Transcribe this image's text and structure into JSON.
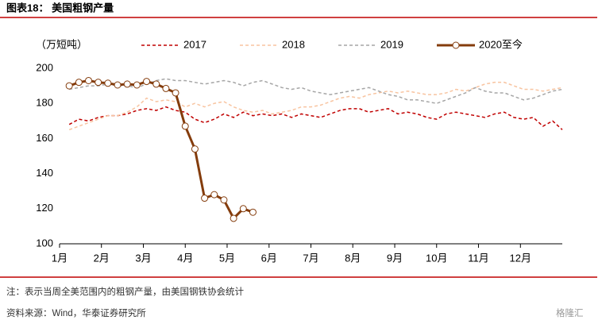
{
  "chart_data": {
    "type": "line",
    "title": "图表18：  美国粗钢产量",
    "y_label": "（万短吨）",
    "note": "注：表示当周全美范围内的粗钢产量，由美国钢铁协会统计",
    "source": "资料来源：Wind，华泰证券研究所",
    "watermark": "格隆汇",
    "x": [
      1,
      2,
      3,
      4,
      5,
      6,
      7,
      8,
      9,
      10,
      11,
      12,
      13,
      14,
      15,
      16,
      17,
      18,
      19,
      20,
      21,
      22,
      23,
      24,
      25,
      26,
      27,
      28,
      29,
      30,
      31,
      32,
      33,
      34,
      35,
      36,
      37,
      38,
      39,
      40,
      41,
      42,
      43,
      44,
      45,
      46,
      47,
      48,
      49,
      50,
      51,
      52
    ],
    "xlim": [
      0,
      52
    ],
    "xticks": [
      {
        "value": 0,
        "label": "1月"
      },
      {
        "value": 4.33,
        "label": "2月"
      },
      {
        "value": 8.67,
        "label": "3月"
      },
      {
        "value": 13,
        "label": "4月"
      },
      {
        "value": 17.33,
        "label": "5月"
      },
      {
        "value": 21.67,
        "label": "6月"
      },
      {
        "value": 26,
        "label": "7月"
      },
      {
        "value": 30.33,
        "label": "8月"
      },
      {
        "value": 34.67,
        "label": "9月"
      },
      {
        "value": 39,
        "label": "10月"
      },
      {
        "value": 43.33,
        "label": "11月"
      },
      {
        "value": 47.67,
        "label": "12月"
      }
    ],
    "ylim": [
      100,
      200
    ],
    "yticks": [
      100,
      120,
      140,
      160,
      180,
      200
    ],
    "series": [
      {
        "name": "2017",
        "color": "#c00000",
        "dash": true,
        "values": [
          168,
          171,
          170,
          172,
          173,
          173,
          174,
          176,
          177,
          176,
          178,
          176,
          175,
          171,
          169,
          171,
          174,
          172,
          175,
          173,
          174,
          173,
          174,
          172,
          174,
          173,
          172,
          174,
          176,
          177,
          177,
          175,
          176,
          177,
          174,
          175,
          174,
          172,
          171,
          174,
          175,
          174,
          173,
          172,
          174,
          175,
          172,
          171,
          172,
          167,
          170,
          165
        ]
      },
      {
        "name": "2018",
        "color": "#f8c4a0",
        "dash": true,
        "values": [
          165,
          167,
          169,
          171,
          173,
          173,
          175,
          178,
          183,
          181,
          182,
          181,
          178,
          180,
          178,
          180,
          181,
          178,
          176,
          175,
          176,
          174,
          175,
          176,
          178,
          178,
          179,
          181,
          183,
          184,
          183,
          185,
          186,
          187,
          186,
          187,
          186,
          185,
          185,
          186,
          188,
          187,
          189,
          191,
          192,
          192,
          190,
          188,
          188,
          187,
          188,
          189
        ]
      },
      {
        "name": "2019",
        "color": "#a6a6a6",
        "dash": true,
        "values": [
          188,
          189,
          190,
          190,
          191,
          190,
          190,
          189,
          191,
          193,
          194,
          193,
          193,
          192,
          191,
          192,
          193,
          192,
          190,
          192,
          193,
          191,
          189,
          188,
          189,
          187,
          186,
          185,
          186,
          187,
          188,
          189,
          187,
          185,
          184,
          182,
          182,
          181,
          180,
          182,
          184,
          186,
          189,
          187,
          186,
          186,
          184,
          182,
          183,
          185,
          187,
          188
        ]
      },
      {
        "name": "2020至今",
        "color": "#843c0c",
        "dash": false,
        "markers": true,
        "values": [
          190,
          192,
          193,
          192,
          191.5,
          190.5,
          191,
          190.5,
          192.5,
          191,
          188.5,
          186,
          167,
          154,
          126,
          128,
          125,
          114.5,
          120,
          118,
          null,
          null,
          null,
          null,
          null,
          null,
          null,
          null,
          null,
          null,
          null,
          null,
          null,
          null,
          null,
          null,
          null,
          null,
          null,
          null,
          null,
          null,
          null,
          null,
          null,
          null,
          null,
          null,
          null,
          null,
          null,
          null
        ]
      }
    ]
  }
}
